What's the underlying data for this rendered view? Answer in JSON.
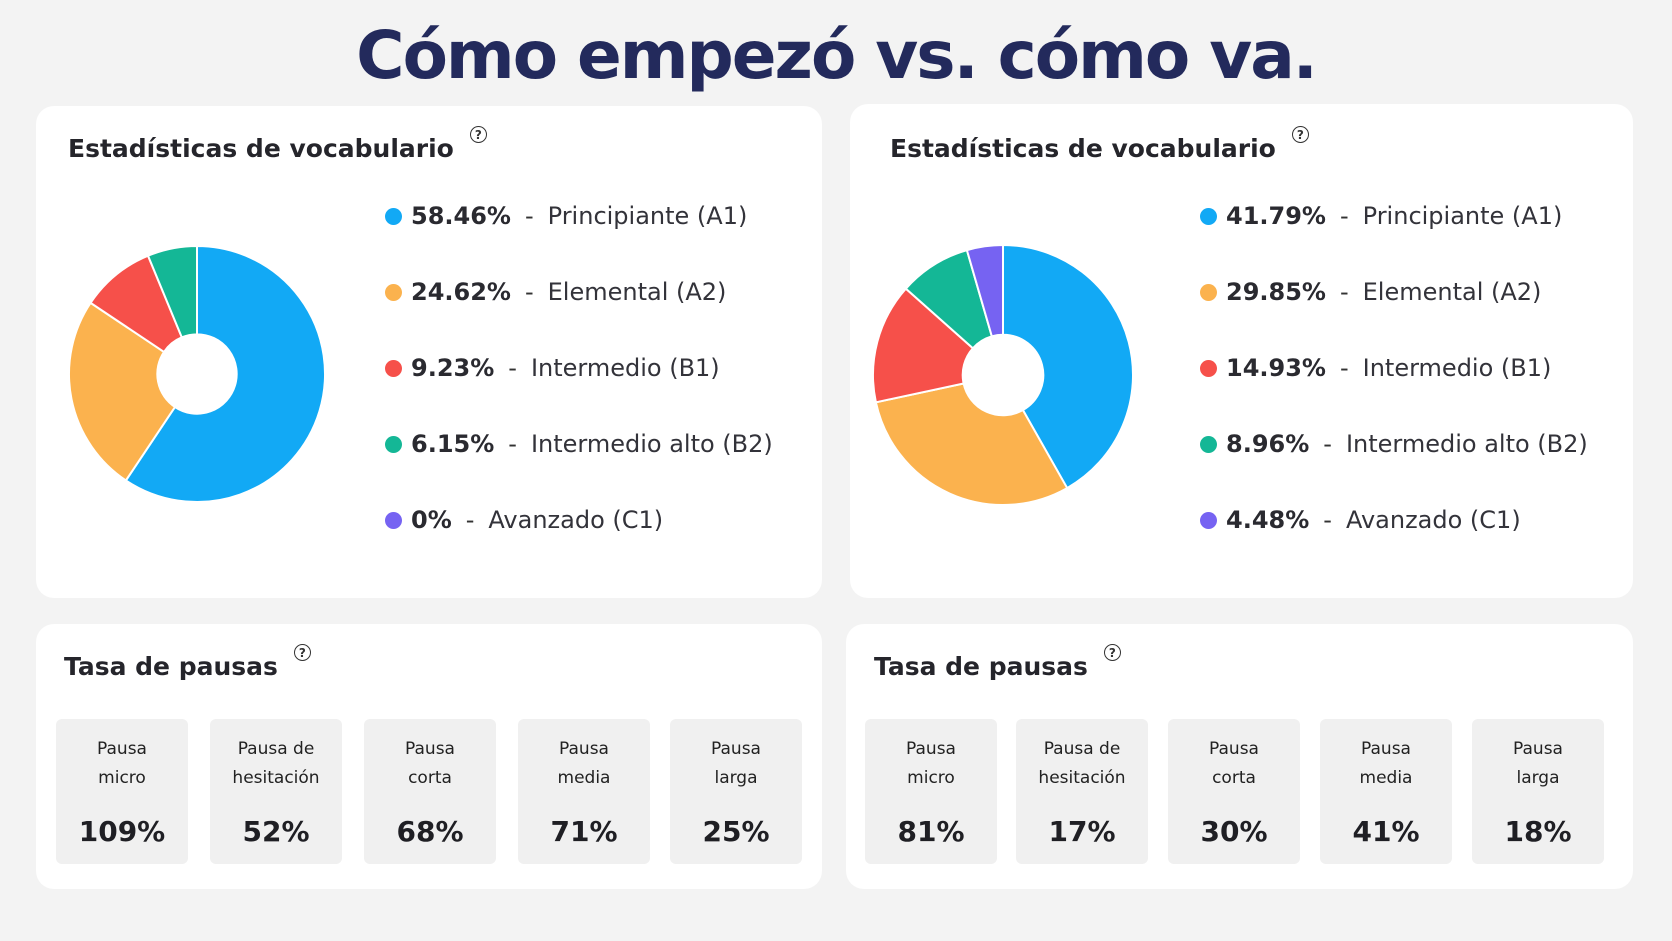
{
  "title": "Cómo empezó vs. cómo va.",
  "panels": [
    {
      "vocab": {
        "title": "Estadísticas de vocabulario",
        "help_icon": "?",
        "items": [
          {
            "pct": "58.46%",
            "sep": "-",
            "label": "Principiante (A1)",
            "value": 58.46,
            "color": "#12a9f5"
          },
          {
            "pct": "24.62%",
            "sep": "-",
            "label": "Elemental (A2)",
            "value": 24.62,
            "color": "#fbb24e"
          },
          {
            "pct": "9.23%",
            "sep": "-",
            "label": "Intermedio (B1)",
            "value": 9.23,
            "color": "#f6504a"
          },
          {
            "pct": "6.15%",
            "sep": "-",
            "label": "Intermedio alto (B2)",
            "value": 6.15,
            "color": "#14b796"
          },
          {
            "pct": "0%",
            "sep": "-",
            "label": "Avanzado (C1)",
            "value": 0,
            "color": "#7663f2"
          }
        ]
      },
      "pauses": {
        "title": "Tasa de pausas",
        "help_icon": "?",
        "items": [
          {
            "label": "Pausa\nmicro",
            "value": "109%"
          },
          {
            "label": "Pausa de\nhesitación",
            "value": "52%"
          },
          {
            "label": "Pausa\ncorta",
            "value": "68%"
          },
          {
            "label": "Pausa\nmedia",
            "value": "71%"
          },
          {
            "label": "Pausa\nlarga",
            "value": "25%"
          }
        ]
      }
    },
    {
      "vocab": {
        "title": "Estadísticas de vocabulario",
        "help_icon": "?",
        "items": [
          {
            "pct": "41.79%",
            "sep": "-",
            "label": "Principiante (A1)",
            "value": 41.79,
            "color": "#12a9f5"
          },
          {
            "pct": "29.85%",
            "sep": "-",
            "label": "Elemental (A2)",
            "value": 29.85,
            "color": "#fbb24e"
          },
          {
            "pct": "14.93%",
            "sep": "-",
            "label": "Intermedio (B1)",
            "value": 14.93,
            "color": "#f6504a"
          },
          {
            "pct": "8.96%",
            "sep": "-",
            "label": "Intermedio alto (B2)",
            "value": 8.96,
            "color": "#14b796"
          },
          {
            "pct": "4.48%",
            "sep": "-",
            "label": "Avanzado (C1)",
            "value": 4.48,
            "color": "#7663f2"
          }
        ]
      },
      "pauses": {
        "title": "Tasa de pausas",
        "help_icon": "?",
        "items": [
          {
            "label": "Pausa\nmicro",
            "value": "81%"
          },
          {
            "label": "Pausa de\nhesitación",
            "value": "17%"
          },
          {
            "label": "Pausa\ncorta",
            "value": "30%"
          },
          {
            "label": "Pausa\nmedia",
            "value": "41%"
          },
          {
            "label": "Pausa\nlarga",
            "value": "18%"
          }
        ]
      }
    }
  ]
}
